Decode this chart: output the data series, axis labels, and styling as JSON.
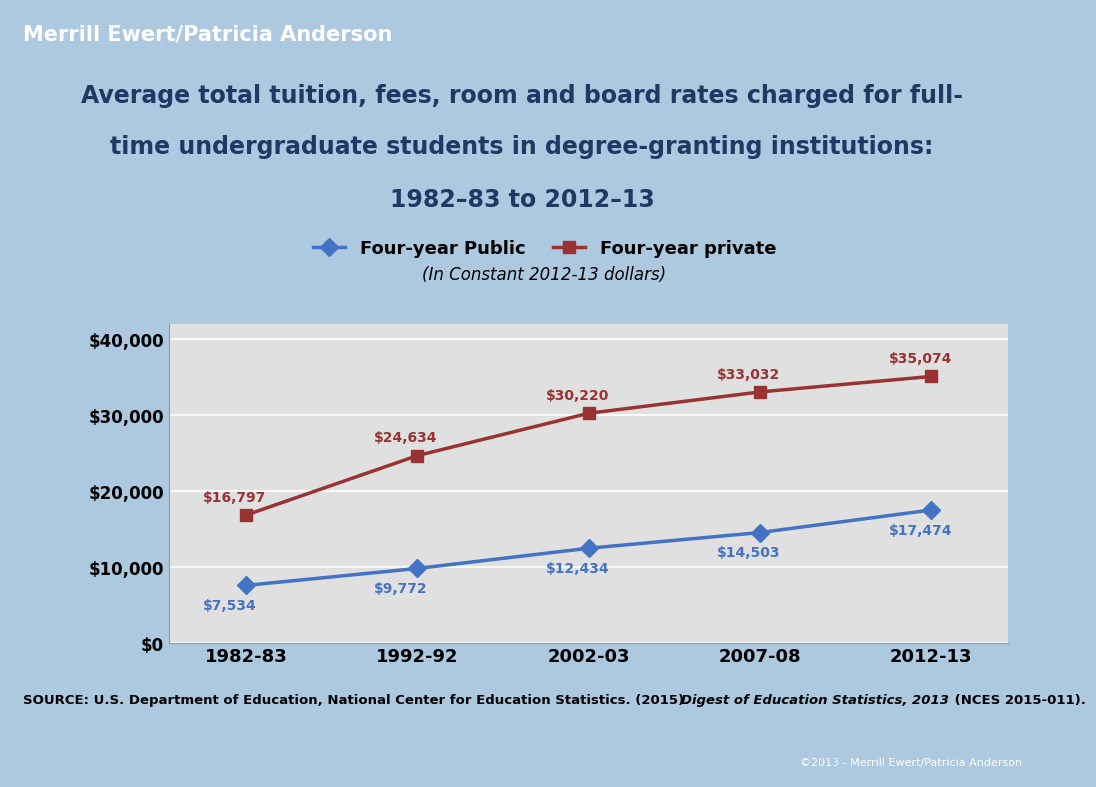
{
  "years": [
    "1982-83",
    "1992-92",
    "2002-03",
    "2007-08",
    "2012-13"
  ],
  "public_values": [
    7534,
    9772,
    12434,
    14503,
    17474
  ],
  "private_values": [
    16797,
    24634,
    30220,
    33032,
    35074
  ],
  "public_labels": [
    "$7,534",
    "$9,772",
    "$12,434",
    "$14,503",
    "$17,474"
  ],
  "private_labels": [
    "$16,797",
    "$24,634",
    "$30,220",
    "$33,032",
    "$35,074"
  ],
  "public_label_xoff": [
    -0.25,
    -0.25,
    -0.25,
    -0.25,
    -0.25
  ],
  "public_label_yoff": [
    -1700,
    -1700,
    -1700,
    -1700,
    -1700
  ],
  "private_label_xoff": [
    -0.25,
    -0.25,
    -0.25,
    -0.25,
    -0.25
  ],
  "private_label_yoff": [
    1500,
    1500,
    1500,
    1500,
    1500
  ],
  "public_color": "#4472C4",
  "private_color": "#993333",
  "title_line1": "Average total tuition, fees, room and board rates charged for full-",
  "title_line2": "time undergraduate students in degree-granting institutions:",
  "title_line3": "1982–83 to 2012–13",
  "subtitle": "(In Constant 2012-13 dollars)",
  "header_text": "Merrill Ewert/Patricia Anderson",
  "footer_normal1": "SOURCE: U.S. Department of Education, National Center for Education Statistics. (2015). ",
  "footer_italic": "Digest of Education Statistics, 2013",
  "footer_normal2": " (NCES 2015-011).",
  "footer_line2_italic": "Statistics, 2013",
  "copyright_text": "©2013 - Merrill Ewert/Patricia Anderson",
  "legend_public": "Four-year Public",
  "legend_private": "Four-year private",
  "header_bg": "#2C2C2C",
  "outer_bg": "#ADC9E0",
  "plot_bg": "#E0E0E0",
  "chart_border_bg": "#FFFFFF",
  "title_color": "#1F3864",
  "ylim": [
    0,
    42000
  ],
  "yticks": [
    0,
    10000,
    20000,
    30000,
    40000
  ],
  "ytick_labels": [
    "$0",
    "$10,000",
    "$20,000",
    "$30,000",
    "$40,000"
  ]
}
